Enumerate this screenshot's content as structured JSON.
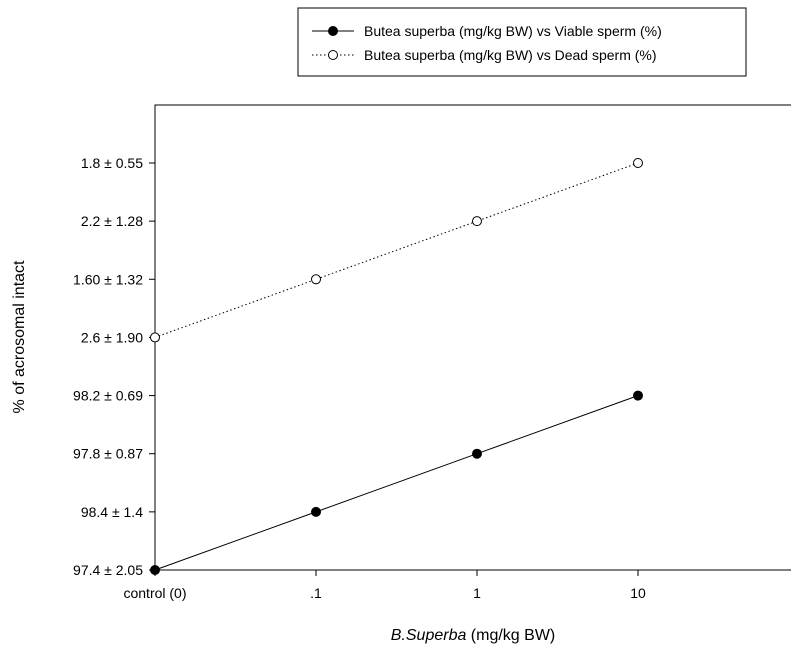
{
  "chart_data": {
    "type": "line",
    "x": [
      "control (0)",
      ".1",
      "1",
      "10"
    ],
    "xlabel": {
      "italic": "B.Superba",
      "rest": " (mg/kg BW)"
    },
    "ylabel": "% of acrosomal intact",
    "y_tick_labels": [
      "97.4 ± 2.05",
      "98.4 ± 1.4",
      "97.8 ± 0.87",
      "98.2 ± 0.69",
      "2.6 ± 1.90",
      "1.60 ± 1.32",
      "2.2 ± 1.28",
      "1.8 ± 0.55"
    ],
    "ylim": [
      0,
      8
    ],
    "legend_position": "top-right",
    "grid": false,
    "series": [
      {
        "name": "Butea superba (mg/kg BW) vs Viable sperm (%)",
        "marker": "filled-circle",
        "line_style": "solid",
        "values": [
          0,
          1,
          2,
          3
        ]
      },
      {
        "name": "Butea superba (mg/kg BW) vs Dead sperm (%)",
        "marker": "open-circle",
        "line_style": "dotted",
        "values": [
          4,
          5,
          6,
          7
        ]
      }
    ]
  }
}
